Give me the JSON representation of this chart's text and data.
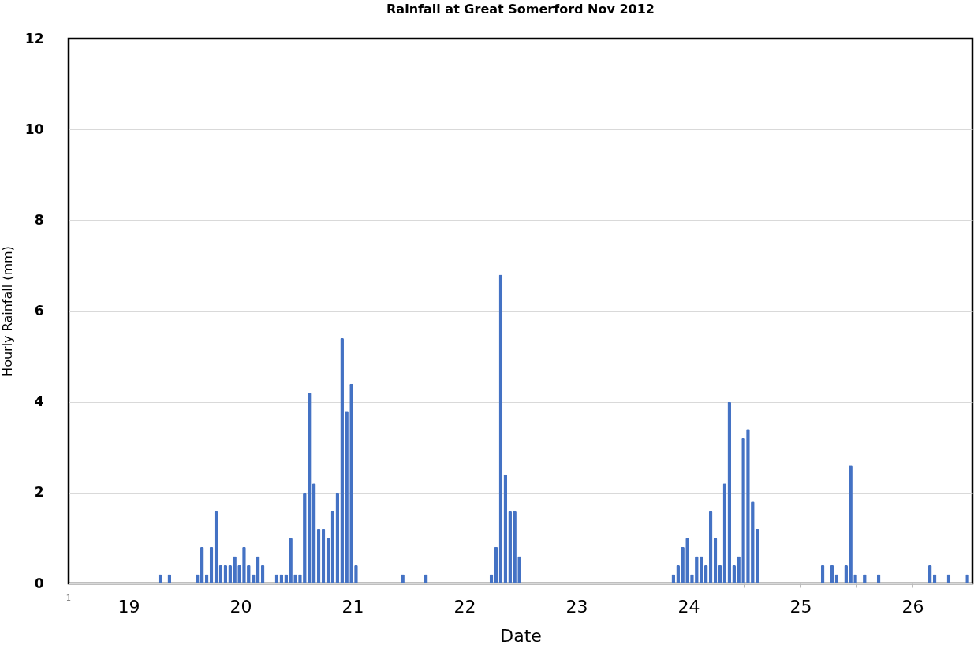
{
  "chart_data": {
    "type": "bar",
    "title": "Rainfall at Great Somerford Nov 2012",
    "xlabel": "Date",
    "ylabel": "Hourly Rainfall (mm)",
    "x": [
      "2012-11-19T18:45",
      "2012-11-19T20:45",
      "2012-11-20T02:45",
      "2012-11-20T03:45",
      "2012-11-20T04:45",
      "2012-11-20T05:45",
      "2012-11-20T06:45",
      "2012-11-20T07:45",
      "2012-11-20T08:45",
      "2012-11-20T09:45",
      "2012-11-20T10:45",
      "2012-11-20T11:45",
      "2012-11-20T12:45",
      "2012-11-20T13:45",
      "2012-11-20T14:45",
      "2012-11-20T15:45",
      "2012-11-20T16:45",
      "2012-11-20T19:45",
      "2012-11-20T20:45",
      "2012-11-20T21:45",
      "2012-11-20T22:45",
      "2012-11-20T23:45",
      "2012-11-21T00:45",
      "2012-11-21T01:45",
      "2012-11-21T02:45",
      "2012-11-21T03:45",
      "2012-11-21T04:45",
      "2012-11-21T05:45",
      "2012-11-21T06:45",
      "2012-11-21T07:45",
      "2012-11-21T08:45",
      "2012-11-21T09:45",
      "2012-11-21T10:45",
      "2012-11-21T11:45",
      "2012-11-21T12:45",
      "2012-11-21T22:45",
      "2012-11-22T03:45",
      "2012-11-22T17:45",
      "2012-11-22T18:45",
      "2012-11-22T19:45",
      "2012-11-22T20:45",
      "2012-11-22T21:45",
      "2012-11-22T22:45",
      "2012-11-22T23:45",
      "2012-11-24T08:45",
      "2012-11-24T09:45",
      "2012-11-24T10:45",
      "2012-11-24T11:45",
      "2012-11-24T12:45",
      "2012-11-24T13:45",
      "2012-11-24T14:45",
      "2012-11-24T15:45",
      "2012-11-24T16:45",
      "2012-11-24T17:45",
      "2012-11-24T18:45",
      "2012-11-24T19:45",
      "2012-11-24T20:45",
      "2012-11-24T21:45",
      "2012-11-24T22:45",
      "2012-11-24T23:45",
      "2012-11-25T00:45",
      "2012-11-25T01:45",
      "2012-11-25T02:45",
      "2012-11-25T16:45",
      "2012-11-25T18:45",
      "2012-11-25T19:45",
      "2012-11-25T21:45",
      "2012-11-25T22:45",
      "2012-11-25T23:45",
      "2012-11-26T01:45",
      "2012-11-26T04:45",
      "2012-11-26T15:45",
      "2012-11-26T16:45",
      "2012-11-26T19:45",
      "2012-11-26T23:45"
    ],
    "values": [
      0.2,
      0.2,
      0.2,
      0.8,
      0.2,
      0.8,
      1.6,
      0.4,
      0.4,
      0.4,
      0.6,
      0.4,
      0.8,
      0.4,
      0.2,
      0.6,
      0.4,
      0.2,
      0.2,
      0.2,
      1.0,
      0.2,
      0.2,
      2.0,
      4.2,
      2.2,
      1.2,
      1.2,
      1.0,
      1.6,
      2.0,
      5.4,
      3.8,
      4.4,
      0.4,
      0.2,
      0.2,
      0.2,
      0.8,
      6.8,
      2.4,
      1.6,
      1.6,
      0.6,
      0.2,
      0.4,
      0.8,
      1.0,
      0.2,
      0.6,
      0.6,
      0.4,
      1.6,
      1.0,
      0.4,
      2.2,
      4.0,
      0.4,
      0.6,
      3.2,
      3.4,
      1.8,
      1.2,
      0.4,
      0.4,
      0.2,
      0.4,
      2.6,
      0.2,
      0.2,
      0.2,
      0.4,
      0.2,
      0.2,
      0.2
    ],
    "color": "#4472c4",
    "xlim": [
      "2012-11-19T00:00",
      "2012-11-27T00:00"
    ],
    "xticks": [
      {
        "value": "2012-11-19T12:00",
        "label": "19"
      },
      {
        "value": "2012-11-20T12:00",
        "label": "20"
      },
      {
        "value": "2012-11-21T12:00",
        "label": "21"
      },
      {
        "value": "2012-11-22T12:00",
        "label": "22"
      },
      {
        "value": "2012-11-23T12:00",
        "label": "23"
      },
      {
        "value": "2012-11-24T12:00",
        "label": "24"
      },
      {
        "value": "2012-11-25T12:00",
        "label": "25"
      },
      {
        "value": "2012-11-26T12:00",
        "label": "26"
      },
      {
        "value": "2012-11-20T00:00",
        "label": null
      },
      {
        "value": "2012-11-21T00:00",
        "label": null
      },
      {
        "value": "2012-11-22T00:00",
        "label": null
      },
      {
        "value": "2012-11-23T00:00",
        "label": null
      },
      {
        "value": "2012-11-24T00:00",
        "label": null
      },
      {
        "value": "2012-11-25T00:00",
        "label": null
      },
      {
        "value": "2012-11-26T00:00",
        "label": null
      }
    ],
    "ylim": [
      0,
      12
    ],
    "yticks": [
      0,
      2,
      4,
      6,
      8,
      10,
      12
    ],
    "grid": "y",
    "annotations": [
      "1"
    ]
  }
}
